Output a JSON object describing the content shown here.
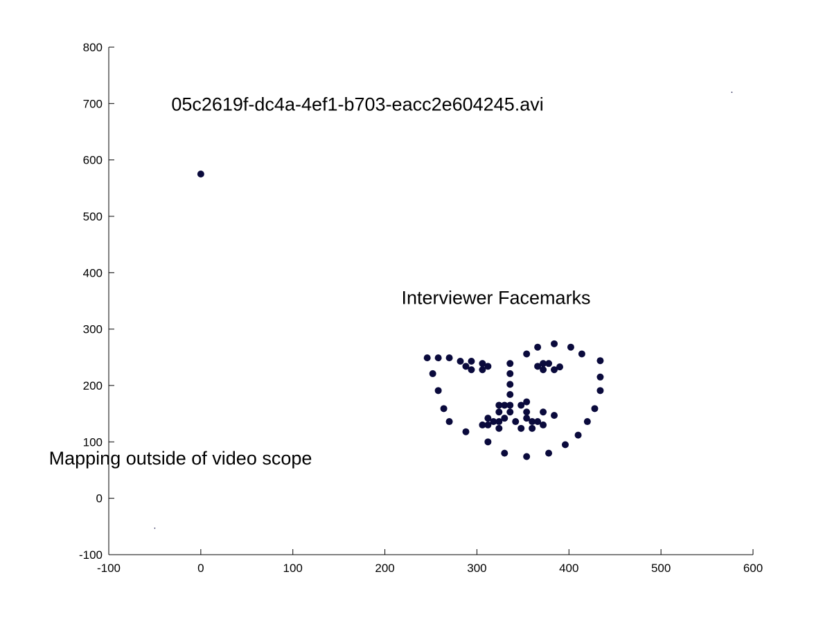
{
  "chart_data": {
    "type": "scatter",
    "xlim": [
      -100,
      600
    ],
    "ylim": [
      -100,
      800
    ],
    "x_ticks": [
      "-100",
      "0",
      "100",
      "200",
      "300",
      "400",
      "500",
      "600"
    ],
    "y_ticks": [
      "-100",
      "0",
      "100",
      "200",
      "300",
      "400",
      "500",
      "600",
      "700",
      "800"
    ],
    "grid": false,
    "marker_color": "#0a0a3c",
    "annotations": [
      {
        "text": "05c2619f-dc4a-4ef1-b703-eacc2e604245.avi",
        "x": -32,
        "y": 700
      },
      {
        "text": "Interviewer Facemarks",
        "x": 218,
        "y": 357
      },
      {
        "text": "Mapping outside of video scope",
        "x": -165,
        "y": 72
      }
    ],
    "series": [
      {
        "points": [
          [
            0,
            575
          ],
          [
            246,
            249
          ],
          [
            258,
            249
          ],
          [
            270,
            249
          ],
          [
            282,
            243
          ],
          [
            288,
            234
          ],
          [
            294,
            243
          ],
          [
            294,
            228
          ],
          [
            306,
            239
          ],
          [
            306,
            228
          ],
          [
            312,
            234
          ],
          [
            336,
            239
          ],
          [
            336,
            221
          ],
          [
            336,
            202
          ],
          [
            336,
            184
          ],
          [
            354,
            256
          ],
          [
            366,
            268
          ],
          [
            366,
            234
          ],
          [
            372,
            239
          ],
          [
            372,
            228
          ],
          [
            378,
            239
          ],
          [
            384,
            274
          ],
          [
            384,
            228
          ],
          [
            390,
            233
          ],
          [
            402,
            268
          ],
          [
            414,
            256
          ],
          [
            434,
            244
          ],
          [
            434,
            215
          ],
          [
            434,
            191
          ],
          [
            428,
            159
          ],
          [
            420,
            136
          ],
          [
            410,
            112
          ],
          [
            396,
            95
          ],
          [
            378,
            80
          ],
          [
            354,
            74
          ],
          [
            330,
            80
          ],
          [
            312,
            100
          ],
          [
            288,
            118
          ],
          [
            270,
            136
          ],
          [
            264,
            159
          ],
          [
            258,
            191
          ],
          [
            252,
            221
          ],
          [
            306,
            130
          ],
          [
            312,
            142
          ],
          [
            318,
            136
          ],
          [
            312,
            130
          ],
          [
            324,
            124
          ],
          [
            324,
            136
          ],
          [
            330,
            142
          ],
          [
            324,
            153
          ],
          [
            324,
            165
          ],
          [
            330,
            165
          ],
          [
            336,
            165
          ],
          [
            336,
            153
          ],
          [
            348,
            165
          ],
          [
            354,
            171
          ],
          [
            354,
            153
          ],
          [
            342,
            136
          ],
          [
            348,
            124
          ],
          [
            354,
            142
          ],
          [
            360,
            136
          ],
          [
            360,
            124
          ],
          [
            366,
            136
          ],
          [
            372,
            130
          ],
          [
            372,
            153
          ],
          [
            384,
            147
          ]
        ]
      },
      {
        "marker": "dot",
        "points": [
          [
            -50,
            -53
          ],
          [
            577,
            720
          ]
        ]
      }
    ]
  }
}
